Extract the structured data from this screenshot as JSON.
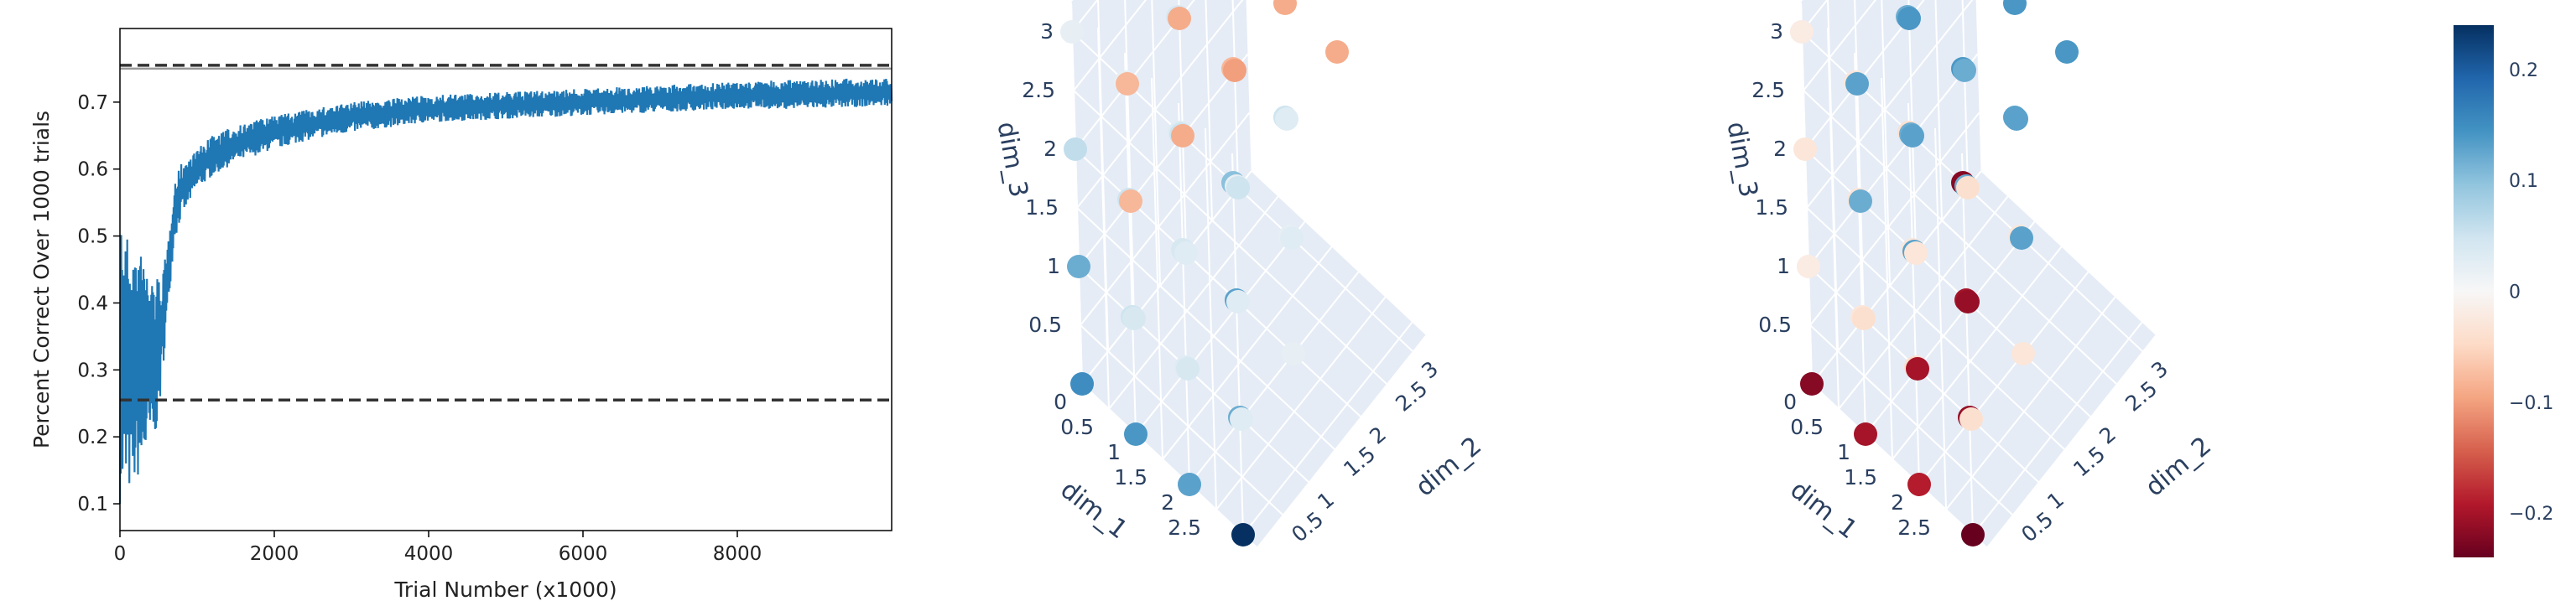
{
  "chart_data": [
    {
      "type": "line",
      "xlabel": "Trial Number (x1000)",
      "ylabel": "Percent Correct Over 1000 trials",
      "xlim": [
        0,
        10000
      ],
      "ylim": [
        0.06,
        0.81
      ],
      "xticks": [
        "0",
        "2000",
        "4000",
        "6000",
        "8000"
      ],
      "yticks": [
        "0.1",
        "0.2",
        "0.3",
        "0.4",
        "0.5",
        "0.6",
        "0.7"
      ],
      "series": [
        {
          "color": "#1f77b4",
          "band": true,
          "x": [
            0,
            100,
            200,
            300,
            400,
            500,
            600,
            700,
            800,
            1000,
            1200,
            1500,
            2000,
            2500,
            3000,
            4000,
            5000,
            6000,
            7000,
            8000,
            9000,
            10000
          ],
          "low": [
            0.1,
            0.11,
            0.13,
            0.15,
            0.18,
            0.22,
            0.36,
            0.49,
            0.53,
            0.57,
            0.59,
            0.61,
            0.63,
            0.645,
            0.655,
            0.67,
            0.675,
            0.68,
            0.685,
            0.69,
            0.69,
            0.695
          ],
          "high": [
            0.54,
            0.5,
            0.49,
            0.47,
            0.45,
            0.44,
            0.47,
            0.58,
            0.61,
            0.63,
            0.65,
            0.665,
            0.68,
            0.69,
            0.7,
            0.71,
            0.715,
            0.72,
            0.725,
            0.73,
            0.735,
            0.735
          ]
        }
      ],
      "hlines": [
        {
          "y": 0.755,
          "style": "dashed",
          "color": "#333333"
        },
        {
          "y": 0.75,
          "style": "solid",
          "color": "#999999"
        },
        {
          "y": 0.255,
          "style": "dashed",
          "color": "#333333"
        }
      ]
    },
    {
      "type": "scatter3d",
      "xlabel": "dim_1",
      "ylabel": "dim_2",
      "zlabel": "dim_3",
      "xticks": [
        "0",
        "0.5",
        "1",
        "1.5",
        "2",
        "2.5"
      ],
      "yticks": [
        "0.5",
        "1",
        "1.5",
        "2",
        "2.5",
        "3"
      ],
      "zticks": [
        "0.5",
        "1",
        "1.5",
        "2",
        "2.5",
        "3"
      ],
      "colorscale": "RdBu",
      "cmin": -0.24,
      "cmax": 0.24,
      "points": [
        [
          3,
          0,
          3,
          0.1
        ],
        [
          2,
          0,
          3,
          0.03
        ],
        [
          1,
          0,
          3,
          0.02
        ],
        [
          0,
          0,
          3,
          0.02
        ],
        [
          0,
          1,
          3,
          -0.08
        ],
        [
          0,
          2,
          3,
          -0.09
        ],
        [
          0,
          3,
          3,
          -0.1
        ],
        [
          3,
          1,
          3,
          0.05
        ],
        [
          3,
          2,
          3,
          -0.09
        ],
        [
          3,
          3,
          3,
          -0.1
        ],
        [
          3,
          0,
          2,
          0.13
        ],
        [
          2,
          0,
          2,
          0.04
        ],
        [
          1,
          0,
          2,
          0.05
        ],
        [
          0,
          0,
          2,
          0.06
        ],
        [
          0,
          1,
          2,
          -0.08
        ],
        [
          0,
          2,
          2,
          -0.09
        ],
        [
          0,
          3,
          2,
          -0.1
        ],
        [
          3,
          0,
          1,
          0.12
        ],
        [
          2,
          0,
          1,
          0.03
        ],
        [
          1,
          0,
          1,
          0.05
        ],
        [
          0,
          0,
          1,
          0.12
        ],
        [
          0,
          1,
          1,
          -0.08
        ],
        [
          0,
          2,
          1,
          -0.09
        ],
        [
          0,
          3,
          1,
          -0.1
        ],
        [
          3,
          0,
          0,
          0.24
        ],
        [
          2,
          0,
          0,
          0.13
        ],
        [
          1,
          0,
          0,
          0.14
        ],
        [
          0,
          0,
          0,
          0.15
        ],
        [
          0,
          1,
          0,
          0.04
        ],
        [
          0,
          2,
          0,
          0.03
        ],
        [
          0,
          3,
          0,
          0.05
        ],
        [
          1,
          1,
          3,
          0.04
        ],
        [
          1,
          1,
          2,
          0.05
        ],
        [
          1,
          1,
          1,
          0.04
        ],
        [
          1,
          1,
          0,
          0.04
        ],
        [
          2,
          2,
          2,
          0.03
        ],
        [
          2,
          2,
          1,
          0.02
        ],
        [
          2,
          2,
          0,
          0.02
        ],
        [
          1,
          2,
          2,
          -0.08
        ],
        [
          1,
          2,
          1,
          0.02
        ],
        [
          1,
          3,
          2,
          -0.09
        ],
        [
          2,
          1,
          0,
          0.03
        ],
        [
          1,
          3,
          0,
          0.03
        ],
        [
          2,
          1,
          1,
          0.03
        ]
      ]
    },
    {
      "type": "scatter3d",
      "xlabel": "dim_1",
      "ylabel": "dim_2",
      "zlabel": "dim_3",
      "xticks": [
        "0",
        "0.5",
        "1",
        "1.5",
        "2",
        "2.5"
      ],
      "yticks": [
        "0.5",
        "1",
        "1.5",
        "2",
        "2.5",
        "3"
      ],
      "zticks": [
        "0.5",
        "1",
        "1.5",
        "2",
        "2.5",
        "3"
      ],
      "colorscale": "RdBu",
      "cmin": -0.24,
      "cmax": 0.24,
      "points": [
        [
          3,
          0,
          3,
          -0.22
        ],
        [
          2,
          0,
          3,
          -0.04
        ],
        [
          1,
          0,
          3,
          -0.03
        ],
        [
          0,
          0,
          3,
          -0.02
        ],
        [
          0,
          1,
          3,
          0.13
        ],
        [
          0,
          2,
          3,
          0.15
        ],
        [
          0,
          3,
          3,
          0.14
        ],
        [
          3,
          1,
          3,
          0.13
        ],
        [
          3,
          2,
          3,
          0.14
        ],
        [
          3,
          3,
          3,
          0.15
        ],
        [
          3,
          0,
          2,
          -0.2
        ],
        [
          2,
          0,
          2,
          -0.03
        ],
        [
          1,
          0,
          2,
          -0.03
        ],
        [
          0,
          0,
          2,
          -0.03
        ],
        [
          0,
          1,
          2,
          0.13
        ],
        [
          0,
          2,
          2,
          0.14
        ],
        [
          0,
          3,
          2,
          0.13
        ],
        [
          3,
          0,
          1,
          -0.21
        ],
        [
          2,
          0,
          1,
          -0.04
        ],
        [
          1,
          0,
          1,
          -0.03
        ],
        [
          0,
          0,
          1,
          -0.02
        ],
        [
          0,
          1,
          1,
          0.12
        ],
        [
          0,
          2,
          1,
          0.13
        ],
        [
          0,
          3,
          1,
          0.12
        ],
        [
          3,
          0,
          0,
          -0.24
        ],
        [
          2,
          0,
          0,
          -0.19
        ],
        [
          1,
          0,
          0,
          -0.2
        ],
        [
          0,
          0,
          0,
          -0.22
        ],
        [
          0,
          1,
          0,
          -0.04
        ],
        [
          0,
          2,
          0,
          -0.03
        ],
        [
          0,
          3,
          0,
          -0.04
        ],
        [
          1,
          1,
          3,
          0.12
        ],
        [
          1,
          1,
          2,
          0.12
        ],
        [
          1,
          1,
          1,
          0.13
        ],
        [
          1,
          1,
          0,
          -0.2
        ],
        [
          2,
          2,
          2,
          0.13
        ],
        [
          2,
          2,
          1,
          -0.03
        ],
        [
          2,
          2,
          0,
          -0.03
        ],
        [
          1,
          2,
          2,
          0.14
        ],
        [
          1,
          2,
          1,
          0.12
        ],
        [
          1,
          3,
          2,
          0.14
        ],
        [
          2,
          1,
          0,
          -0.04
        ],
        [
          1,
          3,
          0,
          0.13
        ],
        [
          2,
          1,
          1,
          -0.21
        ]
      ]
    }
  ],
  "colorbar": {
    "ticks": [
      "0.2",
      "0.1",
      "0",
      "−0.1",
      "−0.2"
    ],
    "tick_values": [
      0.2,
      0.1,
      0,
      -0.1,
      -0.2
    ],
    "min": -0.24,
    "max": 0.24
  }
}
